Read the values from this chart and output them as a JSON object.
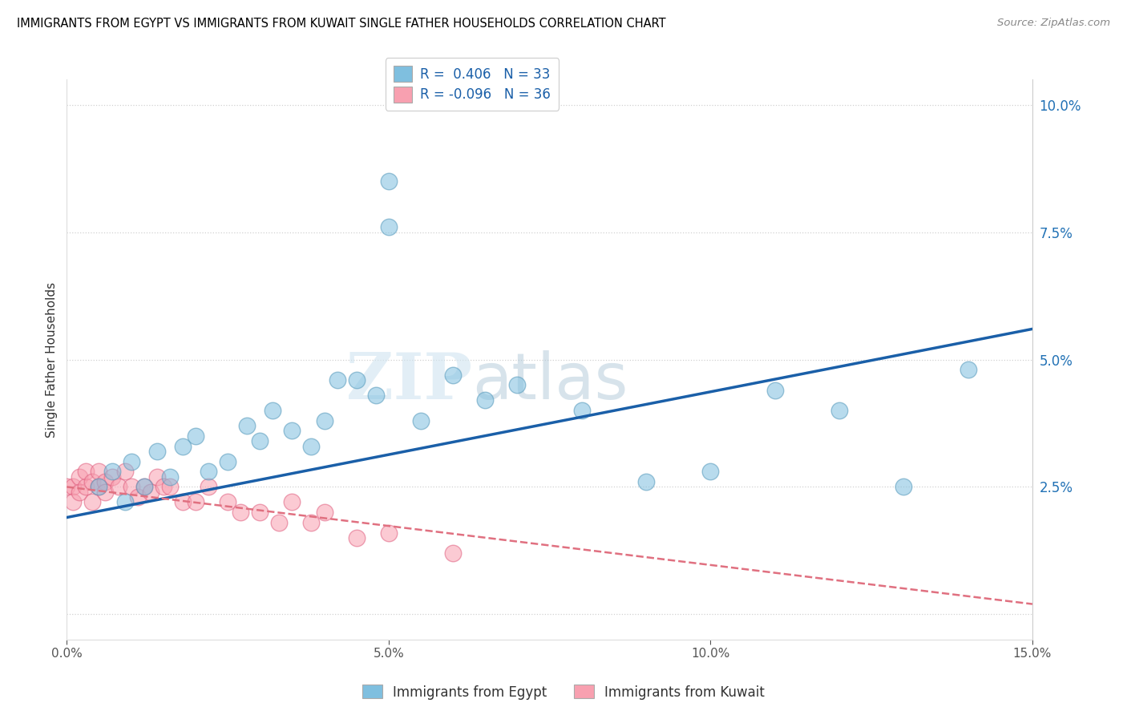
{
  "title": "IMMIGRANTS FROM EGYPT VS IMMIGRANTS FROM KUWAIT SINGLE FATHER HOUSEHOLDS CORRELATION CHART",
  "source": "Source: ZipAtlas.com",
  "ylabel": "Single Father Households",
  "xlim": [
    0.0,
    0.15
  ],
  "ylim": [
    -0.005,
    0.105
  ],
  "yticks": [
    0.0,
    0.025,
    0.05,
    0.075,
    0.1
  ],
  "xticks": [
    0.0,
    0.05,
    0.1,
    0.15
  ],
  "egypt_color": "#7fbfdf",
  "egypt_edge": "#5599bb",
  "kuwait_color": "#f8a0b0",
  "kuwait_edge": "#e06080",
  "trend_egypt_color": "#1a5fa8",
  "trend_kuwait_color": "#e07080",
  "egypt_R": 0.406,
  "egypt_N": 33,
  "kuwait_R": -0.096,
  "kuwait_N": 36,
  "egypt_x": [
    0.005,
    0.007,
    0.009,
    0.01,
    0.012,
    0.014,
    0.016,
    0.018,
    0.02,
    0.022,
    0.025,
    0.028,
    0.03,
    0.032,
    0.035,
    0.038,
    0.04,
    0.042,
    0.045,
    0.048,
    0.05,
    0.05,
    0.055,
    0.06,
    0.065,
    0.07,
    0.08,
    0.09,
    0.1,
    0.11,
    0.12,
    0.13,
    0.14
  ],
  "egypt_y": [
    0.025,
    0.028,
    0.022,
    0.03,
    0.025,
    0.032,
    0.027,
    0.033,
    0.035,
    0.028,
    0.03,
    0.037,
    0.034,
    0.04,
    0.036,
    0.033,
    0.038,
    0.046,
    0.046,
    0.043,
    0.085,
    0.076,
    0.038,
    0.047,
    0.042,
    0.045,
    0.04,
    0.026,
    0.028,
    0.044,
    0.04,
    0.025,
    0.048
  ],
  "kuwait_x": [
    0.0,
    0.001,
    0.001,
    0.002,
    0.002,
    0.003,
    0.003,
    0.004,
    0.004,
    0.005,
    0.005,
    0.006,
    0.006,
    0.007,
    0.008,
    0.009,
    0.01,
    0.011,
    0.012,
    0.013,
    0.014,
    0.015,
    0.016,
    0.018,
    0.02,
    0.022,
    0.025,
    0.027,
    0.03,
    0.033,
    0.035,
    0.038,
    0.04,
    0.045,
    0.05,
    0.06
  ],
  "kuwait_y": [
    0.025,
    0.025,
    0.022,
    0.027,
    0.024,
    0.025,
    0.028,
    0.026,
    0.022,
    0.025,
    0.028,
    0.026,
    0.024,
    0.027,
    0.025,
    0.028,
    0.025,
    0.023,
    0.025,
    0.024,
    0.027,
    0.025,
    0.025,
    0.022,
    0.022,
    0.025,
    0.022,
    0.02,
    0.02,
    0.018,
    0.022,
    0.018,
    0.02,
    0.015,
    0.016,
    0.012
  ],
  "egypt_trend": [
    0.019,
    0.056
  ],
  "kuwait_trend": [
    0.025,
    0.002
  ],
  "watermark_part1": "ZIP",
  "watermark_part2": "atlas"
}
